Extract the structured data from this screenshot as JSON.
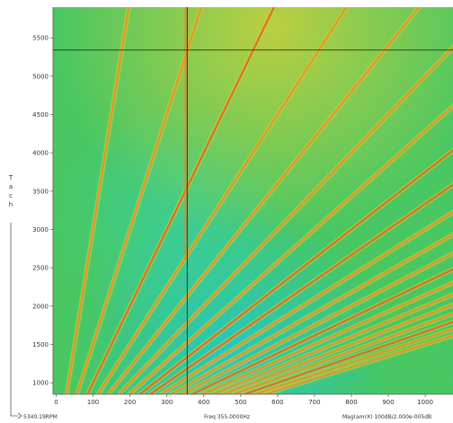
{
  "chart_data": {
    "type": "heatmap",
    "title": "",
    "xlabel": "",
    "ylabel": "Tach",
    "x_ticks": [
      0,
      100,
      200,
      300,
      400,
      500,
      600,
      700,
      800,
      900,
      1000
    ],
    "y_ticks": [
      1000,
      1500,
      2000,
      2500,
      3000,
      3500,
      4000,
      4500,
      5000,
      5500
    ],
    "xlim": [
      0,
      1035
    ],
    "ylim": [
      850,
      5900
    ],
    "cursor": {
      "x": 355,
      "y": 5340.19
    },
    "orders": [
      2,
      4,
      6,
      8,
      10,
      12,
      14,
      16,
      18,
      20,
      22,
      24,
      26,
      28,
      30,
      32,
      34,
      36,
      38,
      40
    ],
    "grid": false,
    "colormap": [
      "#00c8ff",
      "#2ee07a",
      "#63c233",
      "#c8d826",
      "#ff8c1a",
      "#e23a1a"
    ]
  },
  "readouts": {
    "rpm": "5340.19RPM",
    "freq": "Freq 355.0000Hz",
    "mag": "Mag(amrX) 100dB/2.000e-005dB"
  }
}
